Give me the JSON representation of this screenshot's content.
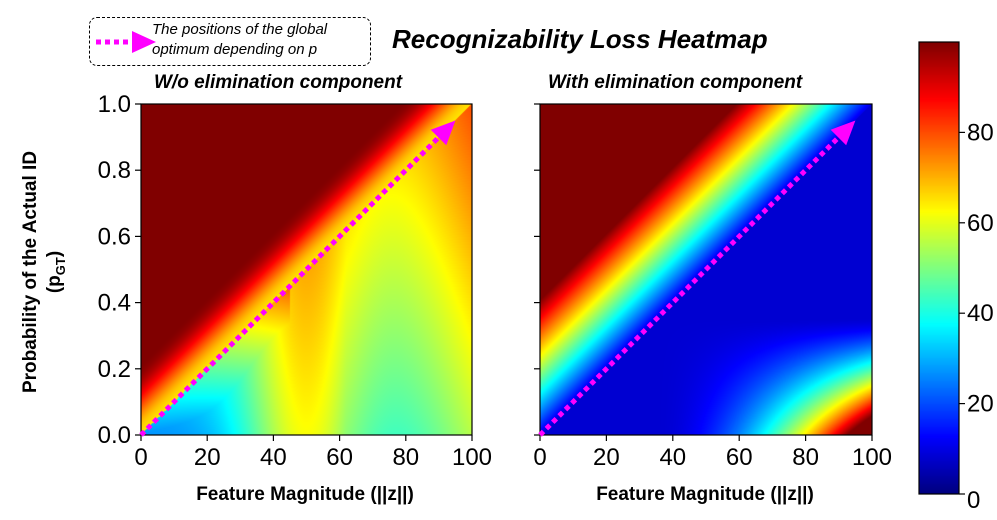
{
  "chart_data": {
    "type": "heatmap",
    "title": "Recognizability Loss Heatmap",
    "legend": {
      "text_line1": "The positions of the global",
      "text_line2": "optimum depending on p",
      "arrow_color": "#ff00ff",
      "placement": "top-left"
    },
    "ylabel_line1": "Probability of the Actual ID",
    "ylabel_line2": "(p",
    "ylabel_sub": "GT",
    "ylabel_close": ")",
    "colorbar": {
      "range": [
        0,
        100
      ],
      "ticks": [
        0,
        20,
        40,
        60,
        80
      ],
      "colormap": "jet"
    },
    "panels": [
      {
        "id": "left",
        "subtitle": "W/o elimination component",
        "xlabel": "Feature Magnitude (||z||)",
        "xlim": [
          0,
          100
        ],
        "ylim": [
          0.0,
          1.0
        ],
        "xticks": [
          0,
          20,
          40,
          60,
          80,
          100
        ],
        "yticks": [
          0.0,
          0.2,
          0.4,
          0.6,
          0.8,
          1.0
        ],
        "show_ytick_labels": true,
        "optimum_arrow": {
          "start": [
            0,
            0.0
          ],
          "end": [
            95,
            0.95
          ]
        }
      },
      {
        "id": "right",
        "subtitle": "With elimination component",
        "xlabel": "Feature Magnitude (||z||)",
        "xlim": [
          0,
          100
        ],
        "ylim": [
          0.0,
          1.0
        ],
        "xticks": [
          0,
          20,
          40,
          60,
          80,
          100
        ],
        "yticks": [
          0.0,
          0.2,
          0.4,
          0.6,
          0.8,
          1.0
        ],
        "show_ytick_labels": false,
        "optimum_arrow": {
          "start": [
            0,
            0.0
          ],
          "end": [
            95,
            0.95
          ]
        }
      }
    ]
  }
}
